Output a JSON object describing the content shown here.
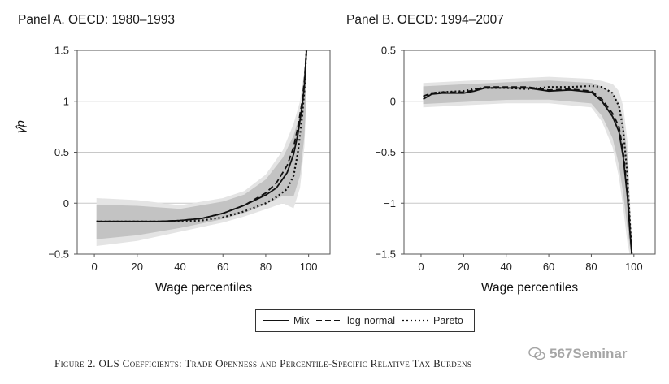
{
  "chart_data": [
    {
      "type": "line",
      "title": "Panel A. OECD: 1980–1993",
      "xlabel": "Wage percentiles",
      "ylabel": "γ̂p",
      "xlim": [
        -8,
        110
      ],
      "ylim": [
        -0.5,
        1.5
      ],
      "xticks": [
        0,
        20,
        40,
        60,
        80,
        100
      ],
      "yticks": [
        -0.5,
        0,
        0.5,
        1,
        1.5
      ],
      "ytick_labels": [
        "−0.5",
        "0",
        "0.5",
        "1",
        "1.5"
      ],
      "grid": "horizontal",
      "x": [
        1,
        10,
        20,
        30,
        40,
        50,
        60,
        70,
        80,
        85,
        90,
        93,
        95,
        97,
        98,
        99
      ],
      "series": [
        {
          "name": "Mix",
          "style": "solid",
          "values": [
            -0.18,
            -0.18,
            -0.18,
            -0.18,
            -0.17,
            -0.15,
            -0.1,
            -0.02,
            0.08,
            0.15,
            0.3,
            0.48,
            0.68,
            0.95,
            1.15,
            1.5
          ]
        },
        {
          "name": "log-normal",
          "style": "dashed",
          "values": [
            -0.18,
            -0.18,
            -0.18,
            -0.18,
            -0.17,
            -0.15,
            -0.1,
            -0.02,
            0.1,
            0.2,
            0.37,
            0.55,
            0.75,
            1.0,
            1.2,
            1.5
          ]
        },
        {
          "name": "Pareto",
          "style": "dotted",
          "values": [
            -0.18,
            -0.18,
            -0.18,
            -0.18,
            -0.18,
            -0.17,
            -0.14,
            -0.08,
            0.0,
            0.06,
            0.14,
            0.27,
            0.5,
            0.85,
            1.1,
            1.5
          ]
        }
      ],
      "confidence_band": {
        "x": [
          1,
          20,
          40,
          60,
          70,
          80,
          88,
          93,
          96,
          98,
          99
        ],
        "lower": [
          -0.42,
          -0.37,
          -0.28,
          -0.19,
          -0.13,
          -0.06,
          0.0,
          -0.05,
          0.15,
          0.55,
          1.0
        ],
        "upper": [
          0.05,
          0.03,
          -0.02,
          0.05,
          0.12,
          0.28,
          0.52,
          0.78,
          1.0,
          1.3,
          1.5
        ]
      }
    },
    {
      "type": "line",
      "title": "Panel B. OECD: 1994–2007",
      "xlabel": "Wage percentiles",
      "ylabel": "",
      "xlim": [
        -8,
        110
      ],
      "ylim": [
        -1.5,
        0.5
      ],
      "xticks": [
        0,
        20,
        40,
        60,
        80,
        100
      ],
      "yticks": [
        -1.5,
        -1,
        -0.5,
        0,
        0.5
      ],
      "ytick_labels": [
        "−1.5",
        "−1",
        "−0.5",
        "0",
        "0.5"
      ],
      "grid": "horizontal",
      "x": [
        1,
        5,
        10,
        20,
        25,
        30,
        40,
        50,
        60,
        70,
        80,
        85,
        90,
        93,
        95,
        97,
        98,
        99
      ],
      "series": [
        {
          "name": "Mix",
          "style": "solid",
          "values": [
            0.02,
            0.07,
            0.08,
            0.08,
            0.1,
            0.13,
            0.13,
            0.13,
            0.1,
            0.11,
            0.09,
            0.0,
            -0.15,
            -0.3,
            -0.55,
            -0.95,
            -1.25,
            -1.5
          ]
        },
        {
          "name": "log-normal",
          "style": "dashed",
          "values": [
            0.05,
            0.08,
            0.09,
            0.09,
            0.11,
            0.14,
            0.14,
            0.14,
            0.11,
            0.12,
            0.1,
            0.02,
            -0.12,
            -0.25,
            -0.5,
            -0.9,
            -1.2,
            -1.5
          ]
        },
        {
          "name": "Pareto",
          "style": "dotted",
          "values": [
            0.04,
            0.08,
            0.09,
            0.1,
            0.12,
            0.13,
            0.13,
            0.12,
            0.14,
            0.14,
            0.15,
            0.14,
            0.08,
            -0.05,
            -0.28,
            -0.75,
            -1.15,
            -1.5
          ]
        }
      ],
      "confidence_band": {
        "x": [
          1,
          20,
          40,
          60,
          80,
          85,
          90,
          93,
          95,
          97,
          98,
          99
        ],
        "lower": [
          -0.06,
          -0.04,
          -0.02,
          -0.02,
          -0.06,
          -0.2,
          -0.45,
          -0.75,
          -1.05,
          -1.4,
          -1.5,
          -1.5
        ],
        "upper": [
          0.18,
          0.2,
          0.22,
          0.24,
          0.22,
          0.2,
          0.17,
          0.1,
          -0.05,
          -0.4,
          -0.9,
          -1.4
        ]
      }
    }
  ],
  "legend": {
    "items": [
      "Mix",
      "log-normal",
      "Pareto"
    ],
    "placement": "bottom-center"
  },
  "caption": "Figure 2. OLS Coefficients: Trade Openness and Percentile-Specific Relative Tax Burdens",
  "watermark": "567Seminar",
  "colors": {
    "line": "#111111",
    "grid": "#c8c8c8",
    "band_outer": "#e4e4e4",
    "band_inner": "#c3c3c3",
    "axis": "#555555"
  }
}
